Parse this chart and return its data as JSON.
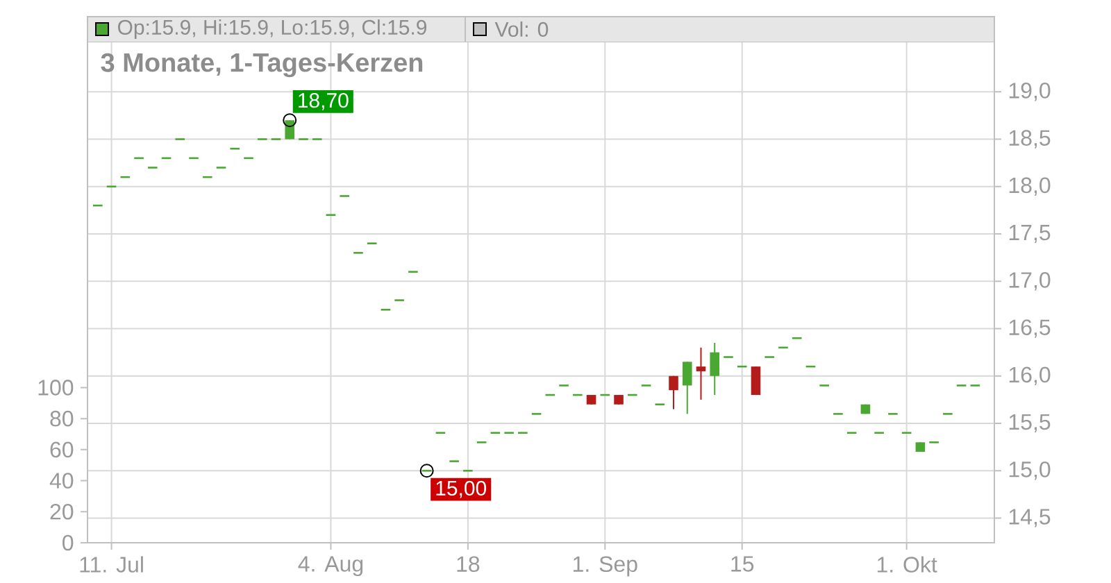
{
  "chart_data": {
    "type": "candlestick",
    "title": "3 Monate, 1-Tages-Kerzen",
    "categories": [
      null,
      "11. Jul",
      null,
      null,
      null,
      null,
      null,
      null,
      null,
      null,
      null,
      null,
      null,
      null,
      null,
      null,
      null,
      "4. Aug",
      null,
      null,
      null,
      null,
      null,
      null,
      null,
      null,
      null,
      "18",
      null,
      null,
      null,
      null,
      null,
      null,
      null,
      null,
      null,
      "1. Sep",
      null,
      null,
      null,
      null,
      null,
      null,
      null,
      null,
      null,
      "15",
      null,
      null,
      null,
      null,
      null,
      null,
      null,
      null,
      null,
      null,
      null,
      "1. Okt",
      null,
      null,
      null,
      null,
      null
    ],
    "ohlc": [
      [
        17.8,
        17.8,
        17.8,
        17.8
      ],
      [
        18.0,
        18.0,
        18.0,
        18.0
      ],
      [
        18.1,
        18.1,
        18.1,
        18.1
      ],
      [
        18.3,
        18.3,
        18.3,
        18.3
      ],
      [
        18.2,
        18.2,
        18.2,
        18.2
      ],
      [
        18.3,
        18.3,
        18.3,
        18.3
      ],
      [
        18.5,
        18.5,
        18.5,
        18.5
      ],
      [
        18.3,
        18.3,
        18.3,
        18.3
      ],
      [
        18.1,
        18.1,
        18.1,
        18.1
      ],
      [
        18.2,
        18.2,
        18.2,
        18.2
      ],
      [
        18.4,
        18.4,
        18.4,
        18.4
      ],
      [
        18.3,
        18.3,
        18.3,
        18.3
      ],
      [
        18.5,
        18.5,
        18.5,
        18.5
      ],
      [
        18.5,
        18.5,
        18.5,
        18.5
      ],
      [
        18.5,
        18.7,
        18.5,
        18.7
      ],
      [
        18.5,
        18.5,
        18.5,
        18.5
      ],
      [
        18.5,
        18.5,
        18.5,
        18.5
      ],
      [
        17.7,
        17.7,
        17.7,
        17.7
      ],
      [
        17.9,
        17.9,
        17.9,
        17.9
      ],
      [
        17.3,
        17.3,
        17.3,
        17.3
      ],
      [
        17.4,
        17.4,
        17.4,
        17.4
      ],
      [
        16.7,
        16.7,
        16.7,
        16.7
      ],
      [
        16.8,
        16.8,
        16.8,
        16.8
      ],
      [
        17.1,
        17.1,
        17.1,
        17.1
      ],
      [
        15.0,
        15.0,
        15.0,
        15.0
      ],
      [
        15.4,
        15.4,
        15.4,
        15.4
      ],
      [
        15.1,
        15.1,
        15.1,
        15.1
      ],
      [
        15.0,
        15.0,
        15.0,
        15.0
      ],
      [
        15.3,
        15.3,
        15.3,
        15.3
      ],
      [
        15.4,
        15.4,
        15.4,
        15.4
      ],
      [
        15.4,
        15.4,
        15.4,
        15.4
      ],
      [
        15.4,
        15.4,
        15.4,
        15.4
      ],
      [
        15.6,
        15.6,
        15.6,
        15.6
      ],
      [
        15.8,
        15.8,
        15.8,
        15.8
      ],
      [
        15.9,
        15.9,
        15.9,
        15.9
      ],
      [
        15.8,
        15.8,
        15.8,
        15.8
      ],
      [
        15.8,
        15.8,
        15.7,
        15.7
      ],
      [
        15.8,
        15.8,
        15.8,
        15.8
      ],
      [
        15.8,
        15.8,
        15.7,
        15.7
      ],
      [
        15.8,
        15.8,
        15.8,
        15.8
      ],
      [
        15.9,
        15.9,
        15.9,
        15.9
      ],
      [
        15.7,
        15.7,
        15.7,
        15.7
      ],
      [
        16.0,
        16.0,
        15.65,
        15.85
      ],
      [
        15.9,
        16.15,
        15.6,
        16.15
      ],
      [
        16.1,
        16.3,
        15.75,
        16.05
      ],
      [
        16.0,
        16.35,
        15.8,
        16.25
      ],
      [
        16.2,
        16.2,
        16.2,
        16.2
      ],
      [
        16.1,
        16.1,
        16.1,
        16.1
      ],
      [
        16.1,
        16.1,
        15.8,
        15.8
      ],
      [
        16.2,
        16.2,
        16.2,
        16.2
      ],
      [
        16.3,
        16.3,
        16.3,
        16.3
      ],
      [
        16.4,
        16.4,
        16.4,
        16.4
      ],
      [
        16.1,
        16.1,
        16.1,
        16.1
      ],
      [
        15.9,
        15.9,
        15.9,
        15.9
      ],
      [
        15.6,
        15.6,
        15.6,
        15.6
      ],
      [
        15.4,
        15.4,
        15.4,
        15.4
      ],
      [
        15.6,
        15.7,
        15.6,
        15.7
      ],
      [
        15.4,
        15.4,
        15.4,
        15.4
      ],
      [
        15.6,
        15.6,
        15.6,
        15.6
      ],
      [
        15.4,
        15.4,
        15.4,
        15.4
      ],
      [
        15.2,
        15.3,
        15.2,
        15.3
      ],
      [
        15.3,
        15.3,
        15.3,
        15.3
      ],
      [
        15.6,
        15.6,
        15.6,
        15.6
      ],
      [
        15.9,
        15.9,
        15.9,
        15.9
      ],
      [
        15.9,
        15.9,
        15.9,
        15.9
      ]
    ],
    "colors": [
      "#4aa832",
      "#4aa832",
      "#4aa832",
      "#4aa832",
      "#4aa832",
      "#4aa832",
      "#4aa832",
      "#4aa832",
      "#4aa832",
      "#4aa832",
      "#4aa832",
      "#4aa832",
      "#4aa832",
      "#4aa832",
      "#4aa832",
      "#4aa832",
      "#4aa832",
      "#4aa832",
      "#4aa832",
      "#4aa832",
      "#4aa832",
      "#4aa832",
      "#4aa832",
      "#4aa832",
      "#4aa832",
      "#4aa832",
      "#4aa832",
      "#4aa832",
      "#4aa832",
      "#4aa832",
      "#4aa832",
      "#4aa832",
      "#4aa832",
      "#4aa832",
      "#4aa832",
      "#4aa832",
      "#b41c1c",
      "#4aa832",
      "#b41c1c",
      "#4aa832",
      "#4aa832",
      "#4aa832",
      "#b41c1c",
      "#4aa832",
      "#b41c1c",
      "#4aa832",
      "#4aa832",
      "#4aa832",
      "#b41c1c",
      "#4aa832",
      "#4aa832",
      "#4aa832",
      "#4aa832",
      "#4aa832",
      "#4aa832",
      "#4aa832",
      "#4aa832",
      "#4aa832",
      "#4aa832",
      "#4aa832",
      "#4aa832",
      "#4aa832",
      "#4aa832",
      "#4aa832",
      "#4aa832"
    ],
    "value_labels": [
      null,
      null,
      null,
      null,
      null,
      null,
      null,
      null,
      null,
      null,
      null,
      null,
      null,
      null,
      "18,70",
      null,
      null,
      null,
      null,
      null,
      null,
      null,
      null,
      null,
      "15,00",
      null,
      null,
      null,
      null,
      null,
      null,
      null,
      null,
      null,
      null,
      null,
      null,
      null,
      null,
      null,
      null,
      null,
      null,
      null,
      null,
      null,
      null,
      null,
      null,
      null,
      null,
      null,
      null,
      null,
      null,
      null,
      null,
      null,
      null,
      null,
      null,
      null,
      null,
      null,
      null
    ],
    "ylim": [
      14.24,
      19.53
    ],
    "yticks": [
      {
        "value": 14.5,
        "label": "14,5"
      },
      {
        "value": 15.0,
        "label": "15,0"
      },
      {
        "value": 15.5,
        "label": "15,5"
      },
      {
        "value": 16.0,
        "label": "16,0"
      },
      {
        "value": 16.5,
        "label": "16,5"
      },
      {
        "value": 17.0,
        "label": "17,0"
      },
      {
        "value": 17.5,
        "label": "17,5"
      },
      {
        "value": 18.0,
        "label": "18,0"
      },
      {
        "value": 18.5,
        "label": "18,5"
      },
      {
        "value": 19.0,
        "label": "19,0"
      }
    ],
    "y2lim": [
      0,
      323
    ],
    "y2ticks": [
      0,
      20,
      40,
      60,
      80,
      100
    ],
    "grid": true,
    "annotations": [
      "Op:15.9, Hi:15.9, Lo:15.9, Cl:15.9",
      "Vol: 0"
    ]
  }
}
